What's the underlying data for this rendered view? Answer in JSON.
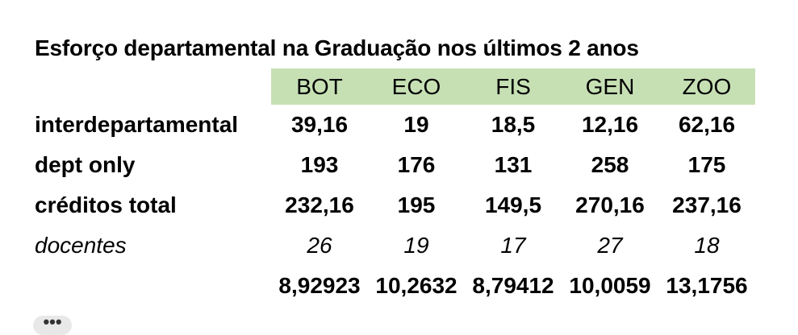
{
  "title": "Esforço departamental na Graduação nos últimos 2 anos",
  "header_fill": "#c6e0b4",
  "columns": [
    "BOT",
    "ECO",
    "FIS",
    "GEN",
    "ZOO"
  ],
  "rows": [
    {
      "label": "interdepartamental",
      "values": [
        "39,16",
        "19",
        "18,5",
        "12,16",
        "62,16"
      ]
    },
    {
      "label": "dept only",
      "values": [
        "193",
        "176",
        "131",
        "258",
        "175"
      ]
    },
    {
      "label": "créditos total",
      "values": [
        "232,16",
        "195",
        "149,5",
        "270,16",
        "237,16"
      ]
    },
    {
      "label": "docentes",
      "values": [
        "26",
        "19",
        "17",
        "27",
        "18"
      ]
    },
    {
      "label": "",
      "values": [
        "8,92923",
        "10,2632",
        "8,79412",
        "10,0059",
        "13,1756"
      ]
    }
  ],
  "more_button": {
    "label": "•••",
    "icon": "ellipsis-icon"
  }
}
